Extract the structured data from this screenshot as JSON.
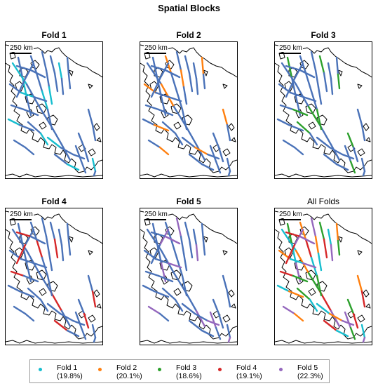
{
  "title": "Spatial Blocks",
  "scale_label": "250 km",
  "colors": {
    "background_track": "#4a72b8",
    "coast": "#000000"
  },
  "panels": [
    {
      "title": "Fold 1",
      "highlight": "fold1"
    },
    {
      "title": "Fold 2",
      "highlight": "fold2"
    },
    {
      "title": "Fold 3",
      "highlight": "fold3"
    },
    {
      "title": "Fold 4",
      "highlight": "fold4"
    },
    {
      "title": "Fold 5",
      "highlight": "fold5"
    },
    {
      "title": "All Folds",
      "highlight": "all"
    }
  ],
  "legend": [
    {
      "id": "fold1",
      "name": "Fold 1",
      "share": "(19.8%)",
      "color": "#17becf"
    },
    {
      "id": "fold2",
      "name": "Fold 2",
      "share": "(20.1%)",
      "color": "#ff7f0e"
    },
    {
      "id": "fold3",
      "name": "Fold 3",
      "share": "(18.6%)",
      "color": "#2ca02c"
    },
    {
      "id": "fold4",
      "name": "Fold 4",
      "share": "(19.1%)",
      "color": "#d62728"
    },
    {
      "id": "fold5",
      "name": "Fold 5",
      "share": "(22.3%)",
      "color": "#9467bd"
    }
  ]
}
